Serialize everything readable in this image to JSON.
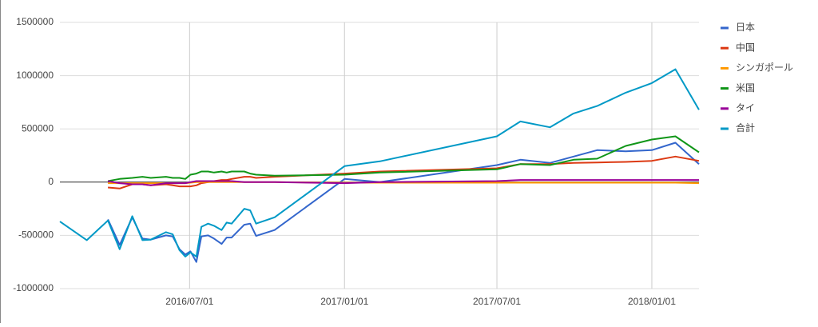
{
  "chart_data": {
    "type": "line",
    "x": [
      "2016/01/29",
      "2016/03/01",
      "2016/03/26",
      "2016/04/09",
      "2016/04/24",
      "2016/05/06",
      "2016/05/16",
      "2016/06/03",
      "2016/06/11",
      "2016/06/19",
      "2016/06/26",
      "2016/07/02",
      "2016/07/09",
      "2016/07/15",
      "2016/07/23",
      "2016/07/30",
      "2016/08/08",
      "2016/08/14",
      "2016/08/20",
      "2016/09/04",
      "2016/09/11",
      "2016/09/18",
      "2016/10/10",
      "2017/01/01",
      "2017/02/12",
      "2017/07/01",
      "2017/07/29",
      "2017/09/02",
      "2017/09/30",
      "2017/10/28",
      "2017/12/01",
      "2018/01/01",
      "2018/01/29",
      "2018/02/26"
    ],
    "series": [
      {
        "name": "日本",
        "color": "#3366cc",
        "values": [
          null,
          null,
          -350000,
          -590000,
          -330000,
          -530000,
          -540000,
          -500000,
          -510000,
          -630000,
          -680000,
          -650000,
          -750000,
          -510000,
          -500000,
          -530000,
          -580000,
          -520000,
          -520000,
          -400000,
          -390000,
          -505000,
          -450000,
          30000,
          0,
          160000,
          210000,
          180000,
          240000,
          300000,
          290000,
          300000,
          370000,
          170000
        ]
      },
      {
        "name": "中国",
        "color": "#dc3912",
        "values": [
          null,
          null,
          -50000,
          -60000,
          -20000,
          -20000,
          -30000,
          -20000,
          -30000,
          -40000,
          -40000,
          -40000,
          -30000,
          -10000,
          0,
          10000,
          20000,
          20000,
          30000,
          50000,
          50000,
          40000,
          50000,
          80000,
          100000,
          130000,
          170000,
          170000,
          180000,
          185000,
          190000,
          200000,
          240000,
          200000
        ]
      },
      {
        "name": "シンガポール",
        "color": "#ff9900",
        "values": [
          null,
          null,
          -10000,
          -10000,
          -10000,
          -10000,
          -10000,
          -10000,
          -10000,
          -10000,
          -10000,
          -5000,
          0,
          0,
          0,
          0,
          0,
          0,
          0,
          0,
          0,
          0,
          0,
          -5000,
          -5000,
          -5000,
          -5000,
          -5000,
          -5000,
          -5000,
          -5000,
          -5000,
          -5000,
          -10000
        ]
      },
      {
        "name": "米国",
        "color": "#109618",
        "values": [
          null,
          null,
          10000,
          30000,
          40000,
          50000,
          40000,
          50000,
          40000,
          40000,
          30000,
          70000,
          80000,
          100000,
          100000,
          90000,
          100000,
          90000,
          100000,
          100000,
          80000,
          70000,
          60000,
          70000,
          90000,
          120000,
          170000,
          160000,
          210000,
          220000,
          340000,
          400000,
          430000,
          280000
        ]
      },
      {
        "name": "タイ",
        "color": "#990099",
        "values": [
          null,
          null,
          10000,
          -10000,
          -20000,
          -20000,
          -30000,
          -10000,
          -10000,
          -10000,
          -10000,
          0,
          10000,
          10000,
          10000,
          10000,
          10000,
          10000,
          10000,
          0,
          0,
          0,
          0,
          -10000,
          0,
          10000,
          20000,
          20000,
          20000,
          20000,
          20000,
          20000,
          20000,
          20000
        ]
      },
      {
        "name": "合計",
        "color": "#0099c6",
        "values": [
          -370000,
          -545000,
          -360000,
          -630000,
          -320000,
          -545000,
          -540000,
          -470000,
          -490000,
          -640000,
          -700000,
          -660000,
          -700000,
          -420000,
          -390000,
          -410000,
          -450000,
          -380000,
          -390000,
          -250000,
          -265000,
          -390000,
          -330000,
          150000,
          195000,
          430000,
          570000,
          515000,
          645000,
          715000,
          840000,
          930000,
          1060000,
          680000
        ]
      }
    ],
    "xlim": [
      "2016/01/29",
      "2018/02/26"
    ],
    "xticks": [
      "2016/07/01",
      "2017/01/01",
      "2017/07/01",
      "2018/01/01"
    ],
    "ylim": [
      -1000000,
      1500000
    ],
    "yticks": [
      -1000000,
      -500000,
      0,
      500000,
      1000000,
      1500000
    ],
    "grid": true
  }
}
